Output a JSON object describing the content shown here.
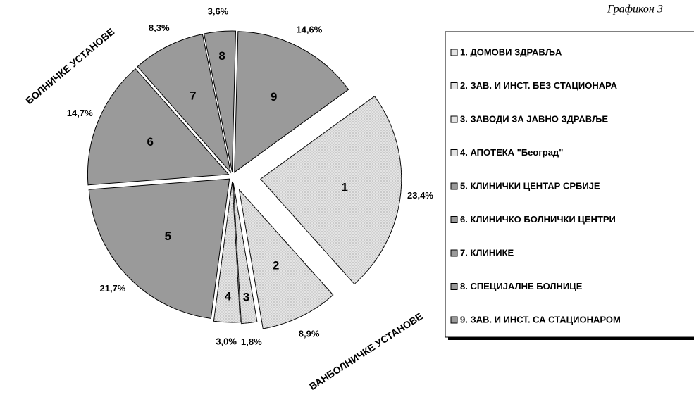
{
  "chart_data": {
    "type": "pie",
    "title": "Графикон 3",
    "categories": [
      "1.  ДОМОВИ ЗДРАВЉА",
      "2.  ЗАВ. И ИНСТ. БЕЗ СТАЦИОНАРА",
      "3.  ЗАВОДИ ЗА ЈАВНО ЗДРАВЉЕ",
      "4.   АПОТЕКА \"Београд\"",
      "5.  КЛИНИЧКИ ЦЕНТАР СРБИЈЕ",
      "6.  КЛИНИЧКО БОЛНИЧКИ ЦЕНТРИ",
      "7.  КЛИНИКЕ",
      "8.  СПЕЦИЈАЛНЕ  БОЛНИЦЕ",
      "9.  ЗАВ. И  ИНСТ. СА СТАЦИОНАРОМ"
    ],
    "slice_labels": [
      "1",
      "2",
      "3",
      "4",
      "5",
      "6",
      "7",
      "8",
      "9"
    ],
    "values": [
      23.4,
      8.9,
      1.8,
      3.0,
      21.7,
      14.7,
      8.3,
      3.6,
      14.6
    ],
    "value_labels": [
      "23,4%",
      "8,9%",
      "1,8%",
      "3,0%",
      "21,7%",
      "14,7%",
      "8,3%",
      "3,6%",
      "14,6%"
    ],
    "colors": [
      "#e4e4e4",
      "#e4e4e4",
      "#e4e4e4",
      "#e4e4e4",
      "#9a9a9a",
      "#9a9a9a",
      "#9a9a9a",
      "#9a9a9a",
      "#9a9a9a"
    ],
    "annotations": [
      "БОЛНИЧКЕ  УСТАНОВЕ",
      "ВАНБОЛНИЧКЕ УСТАНОВЕ"
    ],
    "legend": "right"
  }
}
